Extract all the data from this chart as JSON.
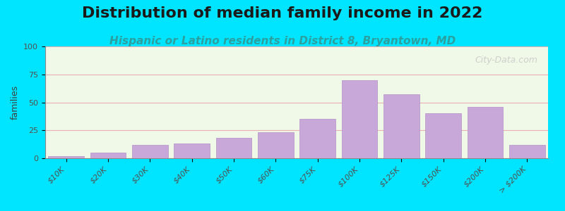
{
  "title": "Distribution of median family income in 2022",
  "subtitle": "Hispanic or Latino residents in District 8, Bryantown, MD",
  "xlabel": "",
  "ylabel": "families",
  "categories": [
    "$10K",
    "$20K",
    "$30K",
    "$40K",
    "$50K",
    "$60K",
    "$75K",
    "$100K",
    "$125K",
    "$150K",
    "$200K",
    "> $200K"
  ],
  "values": [
    2,
    5,
    12,
    13,
    18,
    23,
    35,
    70,
    57,
    40,
    46,
    12
  ],
  "bar_color": "#c8a8d8",
  "bar_edge_color": "#b090c8",
  "ylim": [
    0,
    100
  ],
  "yticks": [
    0,
    25,
    50,
    75,
    100
  ],
  "background_outer": "#00e5ff",
  "background_chart": "#f0f8e8",
  "background_chart_top": "#ffffff",
  "grid_color": "#e8b0b0",
  "title_fontsize": 16,
  "subtitle_fontsize": 11,
  "subtitle_color": "#2aa0a0",
  "watermark": "City-Data.com"
}
